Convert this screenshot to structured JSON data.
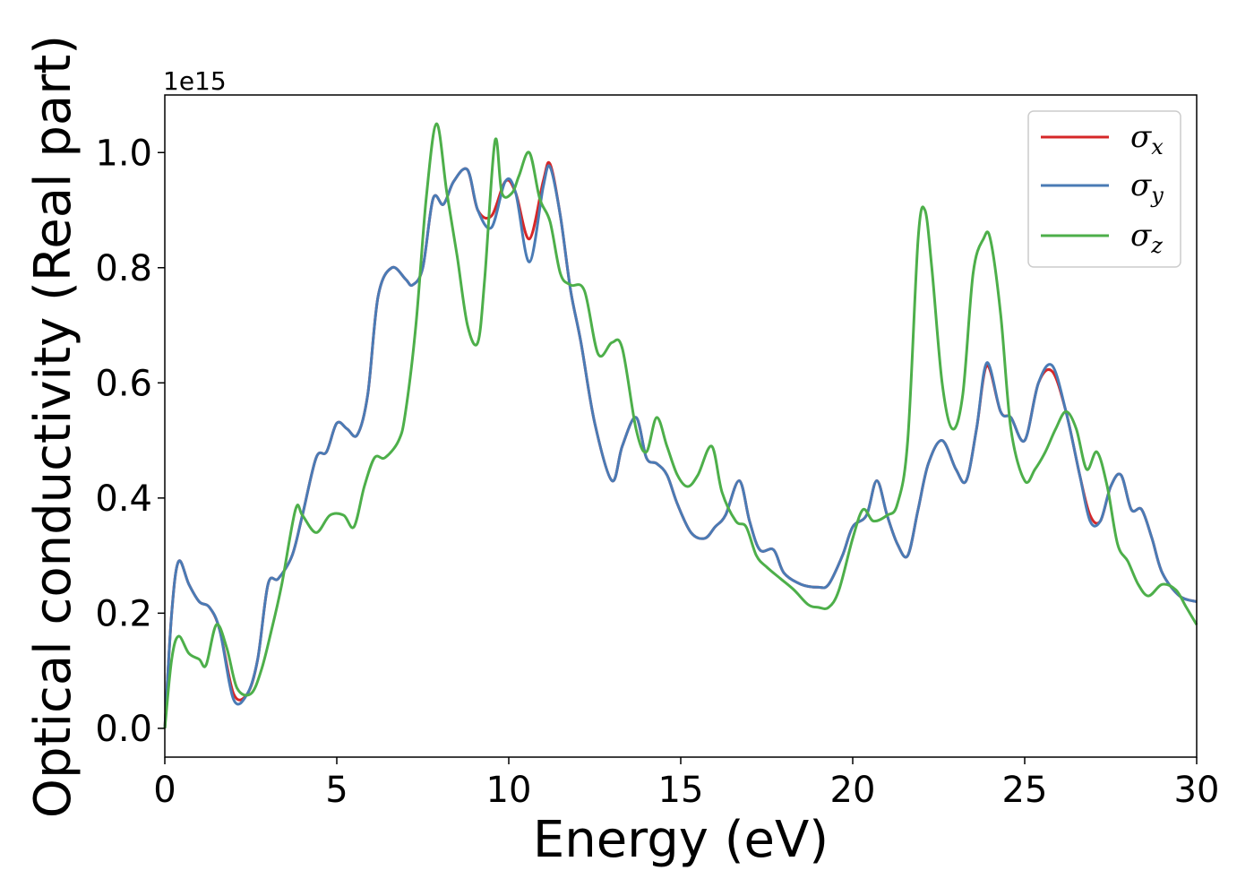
{
  "chart_data": {
    "type": "line",
    "xlabel": "Energy (eV)",
    "ylabel": "Optical conductivity (Real part)",
    "y_offset_label": "1e15",
    "xlim": [
      0,
      30
    ],
    "ylim": [
      -0.05,
      1.1
    ],
    "x_ticks": [
      0,
      5,
      10,
      15,
      20,
      25,
      30
    ],
    "x_tick_labels": [
      "0",
      "5",
      "10",
      "15",
      "20",
      "25",
      "30"
    ],
    "y_ticks": [
      0.0,
      0.2,
      0.4,
      0.6,
      0.8,
      1.0
    ],
    "y_tick_labels": [
      "0.0",
      "0.2",
      "0.4",
      "0.6",
      "0.8",
      "1.0"
    ],
    "grid": false,
    "legend_position": "top-right",
    "series": [
      {
        "name": "σx",
        "symbol": "σ",
        "subscript": "x",
        "color": "#d62728",
        "x": [
          0,
          0.2,
          0.4,
          0.7,
          1.0,
          1.3,
          1.6,
          2.0,
          2.4,
          2.7,
          3.0,
          3.3,
          3.7,
          4.0,
          4.4,
          4.7,
          5.0,
          5.3,
          5.6,
          5.9,
          6.2,
          6.6,
          7.0,
          7.2,
          7.5,
          7.8,
          8.1,
          8.4,
          8.8,
          9.1,
          9.5,
          9.9,
          10.2,
          10.6,
          11.0,
          11.2,
          11.5,
          11.8,
          12.1,
          12.5,
          13.0,
          13.3,
          13.7,
          14.0,
          14.3,
          14.6,
          14.9,
          15.3,
          15.7,
          16.0,
          16.3,
          16.7,
          17.0,
          17.3,
          17.7,
          18.0,
          18.5,
          19.0,
          19.3,
          19.7,
          20.0,
          20.4,
          20.7,
          21.0,
          21.3,
          21.6,
          21.9,
          22.2,
          22.6,
          23.0,
          23.3,
          23.6,
          23.9,
          24.3,
          24.6,
          25.0,
          25.4,
          25.8,
          26.2,
          26.6,
          26.9,
          27.2,
          27.5,
          27.8,
          28.1,
          28.4,
          28.7,
          29.0,
          29.5,
          30.0
        ],
        "y": [
          0.0,
          0.2,
          0.29,
          0.25,
          0.22,
          0.21,
          0.17,
          0.06,
          0.06,
          0.12,
          0.25,
          0.26,
          0.3,
          0.37,
          0.47,
          0.48,
          0.53,
          0.52,
          0.51,
          0.58,
          0.75,
          0.8,
          0.78,
          0.77,
          0.8,
          0.92,
          0.91,
          0.95,
          0.97,
          0.9,
          0.89,
          0.95,
          0.93,
          0.85,
          0.95,
          0.98,
          0.89,
          0.76,
          0.67,
          0.53,
          0.43,
          0.49,
          0.54,
          0.47,
          0.46,
          0.44,
          0.39,
          0.34,
          0.33,
          0.35,
          0.37,
          0.43,
          0.36,
          0.31,
          0.31,
          0.27,
          0.25,
          0.245,
          0.25,
          0.3,
          0.35,
          0.37,
          0.43,
          0.37,
          0.32,
          0.3,
          0.38,
          0.46,
          0.5,
          0.45,
          0.43,
          0.52,
          0.63,
          0.55,
          0.54,
          0.5,
          0.6,
          0.62,
          0.55,
          0.44,
          0.37,
          0.36,
          0.42,
          0.44,
          0.38,
          0.38,
          0.33,
          0.27,
          0.23,
          0.22
        ]
      },
      {
        "name": "σy",
        "symbol": "σ",
        "subscript": "y",
        "color": "#4a7bb5",
        "x": [
          0,
          0.2,
          0.4,
          0.7,
          1.0,
          1.3,
          1.6,
          2.0,
          2.4,
          2.7,
          3.0,
          3.3,
          3.7,
          4.0,
          4.4,
          4.7,
          5.0,
          5.3,
          5.6,
          5.9,
          6.2,
          6.6,
          7.0,
          7.2,
          7.5,
          7.8,
          8.1,
          8.4,
          8.8,
          9.1,
          9.5,
          9.9,
          10.2,
          10.6,
          11.0,
          11.2,
          11.5,
          11.8,
          12.1,
          12.5,
          13.0,
          13.3,
          13.7,
          14.0,
          14.3,
          14.6,
          14.9,
          15.3,
          15.7,
          16.0,
          16.3,
          16.7,
          17.0,
          17.3,
          17.7,
          18.0,
          18.5,
          19.0,
          19.3,
          19.7,
          20.0,
          20.4,
          20.7,
          21.0,
          21.3,
          21.6,
          21.9,
          22.2,
          22.6,
          23.0,
          23.3,
          23.6,
          23.9,
          24.3,
          24.6,
          25.0,
          25.4,
          25.8,
          26.2,
          26.6,
          26.9,
          27.2,
          27.5,
          27.8,
          28.1,
          28.4,
          28.7,
          29.0,
          29.5,
          30.0
        ],
        "y": [
          0.0,
          0.2,
          0.29,
          0.25,
          0.22,
          0.21,
          0.17,
          0.05,
          0.06,
          0.12,
          0.25,
          0.26,
          0.3,
          0.37,
          0.47,
          0.48,
          0.53,
          0.52,
          0.51,
          0.58,
          0.75,
          0.8,
          0.78,
          0.77,
          0.8,
          0.92,
          0.91,
          0.95,
          0.97,
          0.9,
          0.87,
          0.95,
          0.93,
          0.81,
          0.94,
          0.975,
          0.89,
          0.76,
          0.67,
          0.53,
          0.43,
          0.49,
          0.54,
          0.47,
          0.46,
          0.44,
          0.39,
          0.34,
          0.33,
          0.35,
          0.37,
          0.43,
          0.36,
          0.31,
          0.31,
          0.27,
          0.25,
          0.245,
          0.25,
          0.3,
          0.35,
          0.37,
          0.43,
          0.37,
          0.32,
          0.3,
          0.38,
          0.46,
          0.5,
          0.45,
          0.43,
          0.52,
          0.635,
          0.55,
          0.54,
          0.5,
          0.6,
          0.63,
          0.55,
          0.44,
          0.36,
          0.36,
          0.42,
          0.44,
          0.38,
          0.38,
          0.33,
          0.27,
          0.23,
          0.22
        ]
      },
      {
        "name": "σz",
        "symbol": "σ",
        "subscript": "z",
        "color": "#4daf4a",
        "x": [
          0,
          0.2,
          0.4,
          0.7,
          1.0,
          1.2,
          1.5,
          1.8,
          2.1,
          2.5,
          2.8,
          3.1,
          3.4,
          3.8,
          4.0,
          4.4,
          4.8,
          5.2,
          5.5,
          5.8,
          6.1,
          6.4,
          6.8,
          7.0,
          7.3,
          7.6,
          7.9,
          8.2,
          8.5,
          8.8,
          9.1,
          9.3,
          9.6,
          9.8,
          10.1,
          10.3,
          10.6,
          10.9,
          11.2,
          11.5,
          11.8,
          12.2,
          12.6,
          13.0,
          13.3,
          13.7,
          14.0,
          14.3,
          14.6,
          14.9,
          15.2,
          15.5,
          15.9,
          16.2,
          16.6,
          16.9,
          17.2,
          17.5,
          17.9,
          18.3,
          18.7,
          19.0,
          19.3,
          19.6,
          20.0,
          20.3,
          20.6,
          21.0,
          21.3,
          21.6,
          21.9,
          22.1,
          22.3,
          22.6,
          22.9,
          23.2,
          23.5,
          23.8,
          24.0,
          24.3,
          24.6,
          25.0,
          25.3,
          25.6,
          25.9,
          26.2,
          26.5,
          26.8,
          27.1,
          27.4,
          27.7,
          28.0,
          28.3,
          28.6,
          29.0,
          29.4,
          29.7,
          30.0
        ],
        "y": [
          0.0,
          0.12,
          0.16,
          0.13,
          0.12,
          0.11,
          0.18,
          0.14,
          0.07,
          0.06,
          0.1,
          0.17,
          0.25,
          0.38,
          0.37,
          0.34,
          0.37,
          0.37,
          0.35,
          0.42,
          0.47,
          0.47,
          0.5,
          0.55,
          0.7,
          0.92,
          1.05,
          0.93,
          0.82,
          0.7,
          0.67,
          0.78,
          1.02,
          0.93,
          0.93,
          0.96,
          1.0,
          0.92,
          0.88,
          0.79,
          0.77,
          0.76,
          0.65,
          0.67,
          0.66,
          0.52,
          0.48,
          0.54,
          0.49,
          0.44,
          0.42,
          0.44,
          0.49,
          0.41,
          0.36,
          0.35,
          0.3,
          0.28,
          0.26,
          0.24,
          0.215,
          0.21,
          0.21,
          0.24,
          0.33,
          0.38,
          0.36,
          0.37,
          0.39,
          0.5,
          0.85,
          0.9,
          0.8,
          0.6,
          0.52,
          0.58,
          0.79,
          0.85,
          0.85,
          0.72,
          0.52,
          0.43,
          0.45,
          0.48,
          0.52,
          0.55,
          0.52,
          0.45,
          0.48,
          0.42,
          0.32,
          0.29,
          0.25,
          0.23,
          0.25,
          0.24,
          0.21,
          0.18
        ]
      }
    ]
  }
}
